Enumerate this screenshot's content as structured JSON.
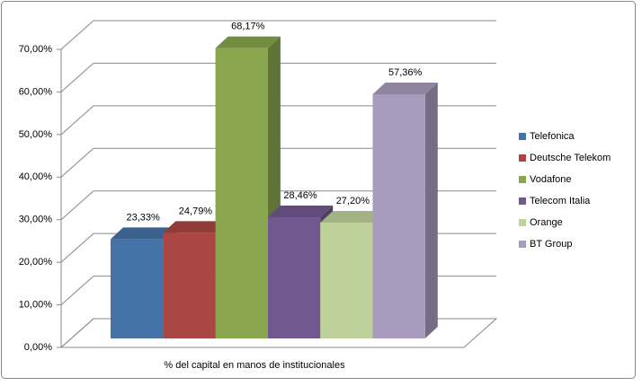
{
  "chart_data": {
    "type": "bar3d",
    "categories": [
      "% del capital en manos de institucionales"
    ],
    "series": [
      {
        "name": "Telefonica",
        "color": "#4572a7",
        "values": [
          23.33
        ],
        "value_labels": [
          "23,33%"
        ]
      },
      {
        "name": "Deutsche Telekom",
        "color": "#aa4643",
        "values": [
          24.79
        ],
        "value_labels": [
          "24,79%"
        ]
      },
      {
        "name": "Vodafone",
        "color": "#89a54e",
        "values": [
          68.17
        ],
        "value_labels": [
          "68,17%"
        ]
      },
      {
        "name": "Telecom Italia",
        "color": "#71588f",
        "values": [
          28.46
        ],
        "value_labels": [
          "28,46%"
        ]
      },
      {
        "name": "Orange",
        "color": "#bfd19a",
        "values": [
          27.2
        ],
        "value_labels": [
          "27,20%"
        ]
      },
      {
        "name": "BT Group",
        "color": "#a99bbd",
        "values": [
          57.36
        ],
        "value_labels": [
          "57,36%"
        ]
      }
    ],
    "ylim": [
      0,
      70
    ],
    "yticks": [
      {
        "value": 0,
        "label": "0,00%"
      },
      {
        "value": 10,
        "label": "10,00%"
      },
      {
        "value": 20,
        "label": "20,00%"
      },
      {
        "value": 30,
        "label": "30,00%"
      },
      {
        "value": 40,
        "label": "40,00%"
      },
      {
        "value": 50,
        "label": "50,00%"
      },
      {
        "value": 60,
        "label": "60,00%"
      },
      {
        "value": 70,
        "label": "70,00%"
      }
    ],
    "grid": true,
    "legend": "right"
  }
}
